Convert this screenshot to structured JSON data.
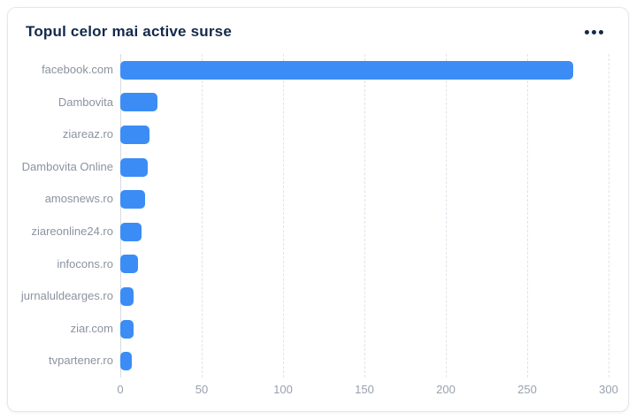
{
  "card": {
    "title": "Topul celor mai active surse",
    "menu_icon": "ellipsis-horizontal-icon"
  },
  "colors": {
    "bar": "#3b8df5",
    "title": "#14294b",
    "y_label": "#8b93a1",
    "tick_label": "#98a0ad",
    "gridline": "#dfe3e9",
    "axis_line": "#d7dbe1",
    "card_border": "#e4e7ec",
    "background": "#ffffff"
  },
  "chart_data": {
    "type": "bar",
    "orientation": "horizontal",
    "title": "Topul celor mai active surse",
    "categories": [
      "facebook.com",
      "Dambovita",
      "ziareaz.ro",
      "Dambovita Online",
      "amosnews.ro",
      "ziareonline24.ro",
      "infocons.ro",
      "jurnaluldearges.ro",
      "ziar.com",
      "tvpartener.ro"
    ],
    "values": [
      278,
      23,
      18,
      17,
      15,
      13,
      11,
      8,
      8,
      7
    ],
    "xlabel": "",
    "ylabel": "",
    "xlim": [
      0,
      300
    ],
    "xticks": [
      0,
      50,
      100,
      150,
      200,
      250,
      300
    ],
    "grid": "dashed-vertical",
    "legend": "none",
    "bar_color": "#3b8df5"
  }
}
